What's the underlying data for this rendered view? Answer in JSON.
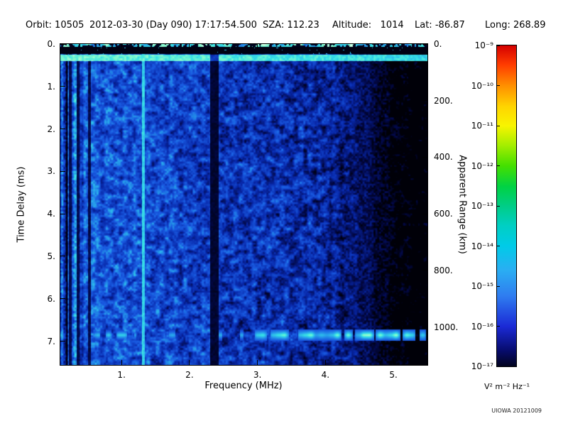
{
  "header": {
    "orbit": "Orbit: 10505",
    "datetime": "2012-03-30 (Day 090) 17:17:54.500",
    "sza": "SZA: 112.23",
    "altitude": "Altitude:   1014",
    "lat": "Lat: -86.87",
    "long": "Long: 268.89"
  },
  "footer": {
    "watermark": "UIOWA 20121009"
  },
  "chart_data": {
    "type": "heatmap",
    "title": "",
    "xlabel": "Frequency (MHz)",
    "ylabel_left": "Time Delay (ms)",
    "ylabel_right": "Apparent Range (km)",
    "x_range_mhz": [
      0.1,
      5.5
    ],
    "y_range_ms": [
      0.0,
      7.56
    ],
    "range_km_per_ms": 150,
    "grid": "off",
    "x_ticks": [
      {
        "value": 1,
        "label": "1."
      },
      {
        "value": 2,
        "label": "2."
      },
      {
        "value": 3,
        "label": "3."
      },
      {
        "value": 4,
        "label": "4."
      },
      {
        "value": 5,
        "label": "5."
      }
    ],
    "y_ticks_left": [
      {
        "value": 0,
        "label": "0."
      },
      {
        "value": 1,
        "label": "1."
      },
      {
        "value": 2,
        "label": "2."
      },
      {
        "value": 3,
        "label": "3."
      },
      {
        "value": 4,
        "label": "4."
      },
      {
        "value": 5,
        "label": "5."
      },
      {
        "value": 6,
        "label": "6."
      },
      {
        "value": 7,
        "label": "7."
      }
    ],
    "y_ticks_right": [
      {
        "value": 0,
        "label": "0."
      },
      {
        "value": 200,
        "label": "200."
      },
      {
        "value": 400,
        "label": "400."
      },
      {
        "value": 600,
        "label": "600."
      },
      {
        "value": 800,
        "label": "800."
      },
      {
        "value": 1000,
        "label": "1000."
      }
    ],
    "colorbar": {
      "unit_label": "V² m⁻² Hz⁻¹",
      "scale": "log",
      "ticks": [
        "10⁻⁹",
        "10⁻¹⁰",
        "10⁻¹¹",
        "10⁻¹²",
        "10⁻¹³",
        "10⁻¹⁴",
        "10⁻¹⁵",
        "10⁻¹⁶",
        "10⁻¹⁷"
      ],
      "gradient": [
        {
          "pos": "0%",
          "color": "#d40000"
        },
        {
          "pos": "6%",
          "color": "#ff3c00"
        },
        {
          "pos": "12.5%",
          "color": "#ff8f00"
        },
        {
          "pos": "19%",
          "color": "#ffd400"
        },
        {
          "pos": "25%",
          "color": "#f8f400"
        },
        {
          "pos": "31%",
          "color": "#a6ee00"
        },
        {
          "pos": "37.5%",
          "color": "#44df00"
        },
        {
          "pos": "44%",
          "color": "#00d244"
        },
        {
          "pos": "50%",
          "color": "#00cd86"
        },
        {
          "pos": "56%",
          "color": "#00cfc2"
        },
        {
          "pos": "62.5%",
          "color": "#00cbe8"
        },
        {
          "pos": "70%",
          "color": "#2aaef2"
        },
        {
          "pos": "78%",
          "color": "#2f7df0"
        },
        {
          "pos": "87.5%",
          "color": "#1b2ad6"
        },
        {
          "pos": "95%",
          "color": "#070c6e"
        },
        {
          "pos": "100%",
          "color": "#02031e"
        }
      ]
    },
    "features": {
      "top_black_band_ms": 0.22,
      "receiver_noise_line_ms": 0.32,
      "bright_vertical_line_mhz": 1.32,
      "dark_vertical_band_mhz": 2.36,
      "dark_vertical_lines_mhz": [
        0.24,
        0.36,
        0.52
      ],
      "surface_echo_ms": 6.85,
      "surface_echo_strong_above_mhz": 2.9,
      "low_freq_bright_below_mhz": 0.5,
      "weak_signal_above_mhz": 4.1
    }
  }
}
